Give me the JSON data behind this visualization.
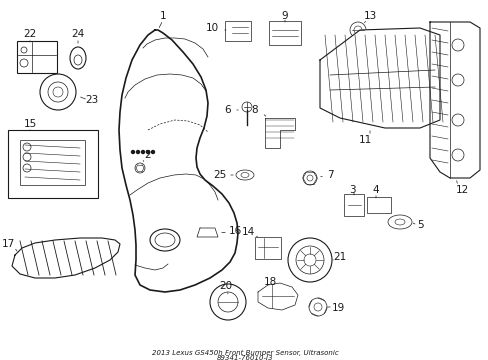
{
  "title_line1": "2013 Lexus GS450h Front Bumper Sensor, Ultrasonic",
  "title_line2": "89341-76010-J3",
  "bg_color": "#ffffff",
  "line_color": "#1a1a1a",
  "fig_width": 4.89,
  "fig_height": 3.6,
  "dpi": 100,
  "label_fs": 7.5,
  "title_fs": 5.0
}
